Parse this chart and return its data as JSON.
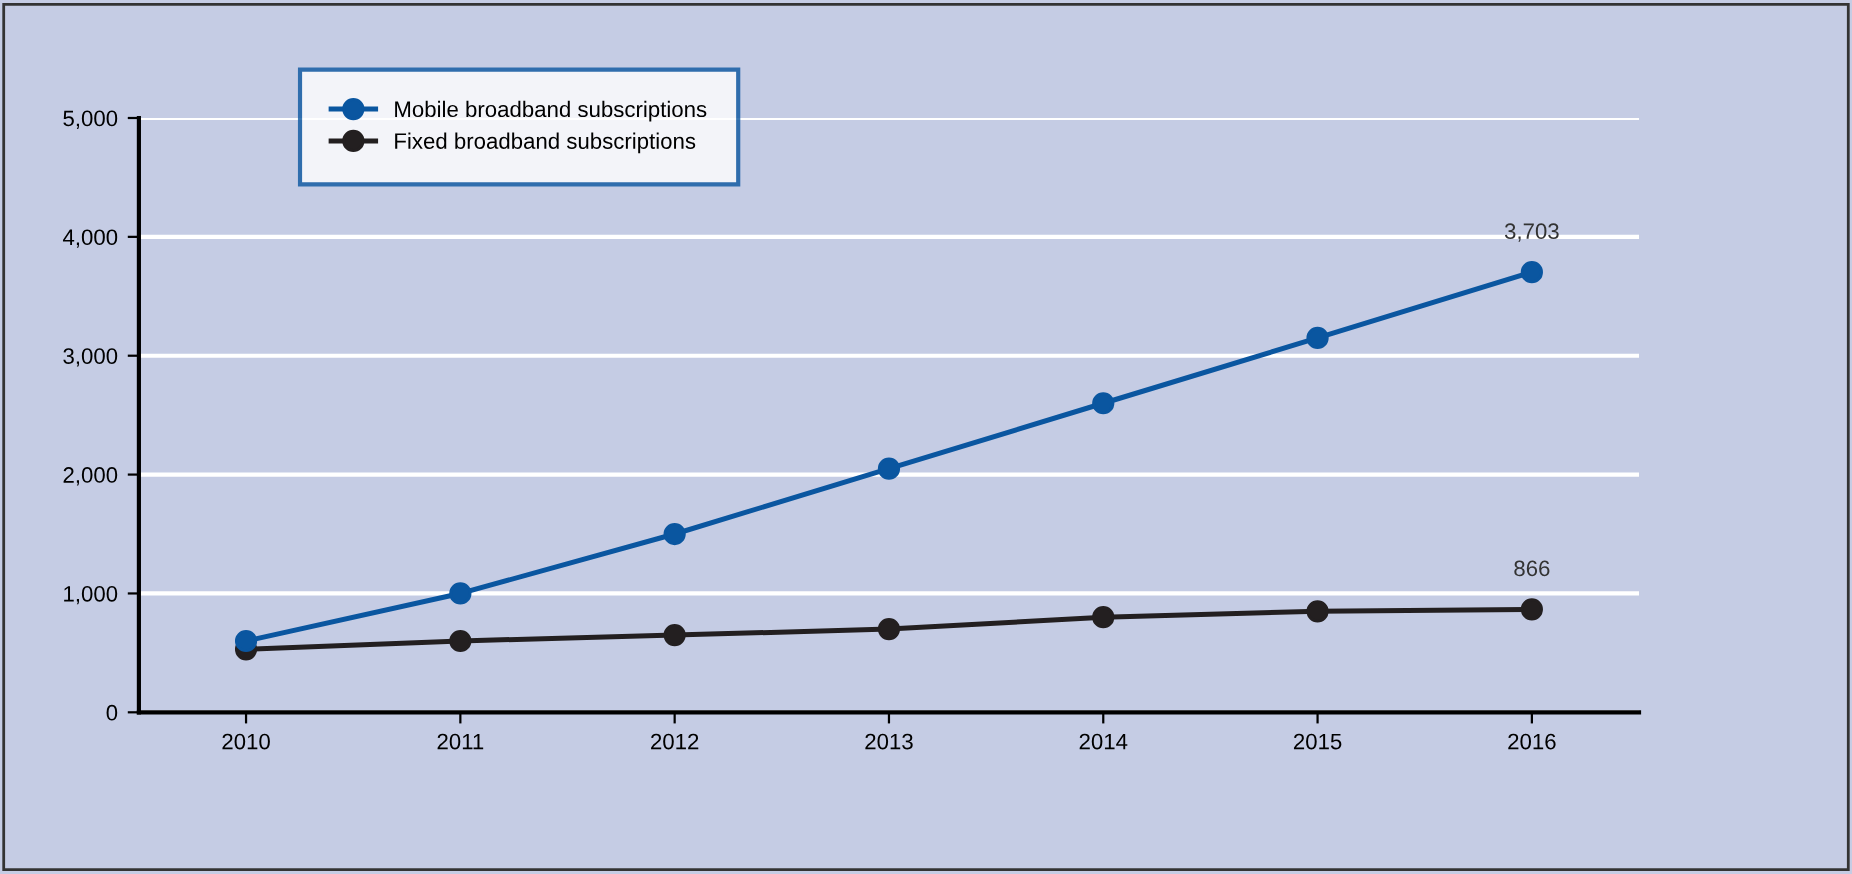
{
  "chart_data": {
    "type": "line",
    "categories": [
      "2010",
      "2011",
      "2012",
      "2013",
      "2014",
      "2015",
      "2016"
    ],
    "series": [
      {
        "name": "Mobile broadband subscriptions",
        "color": "#0a56a0",
        "values": [
          600,
          1000,
          1500,
          2050,
          2600,
          3150,
          3703
        ]
      },
      {
        "name": "Fixed broadband subscriptions",
        "color": "#231f20",
        "values": [
          530,
          600,
          650,
          700,
          800,
          850,
          866
        ]
      }
    ],
    "ylim": [
      0,
      5000
    ],
    "yticks": [
      {
        "value": 0,
        "label": "0"
      },
      {
        "value": 1000,
        "label": "1,000"
      },
      {
        "value": 2000,
        "label": "2,000"
      },
      {
        "value": 3000,
        "label": "3,000"
      },
      {
        "value": 4000,
        "label": "4,000"
      },
      {
        "value": 5000,
        "label": "5,000"
      }
    ],
    "annotations": [
      {
        "text": "3,703",
        "x": "2016",
        "y": 3703
      },
      {
        "text": "866",
        "x": "2016",
        "y": 866
      }
    ],
    "grid": "y",
    "legend": "top left",
    "marker": "circle",
    "line_style": "solid"
  }
}
